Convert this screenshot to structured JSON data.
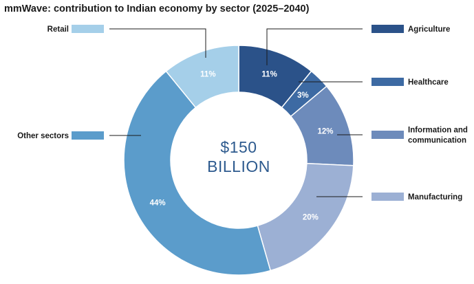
{
  "chart_data": {
    "type": "pie",
    "title": "mmWave: contribution to Indian economy by sector (2025–2040)",
    "center_label": [
      "$150",
      "BILLION"
    ],
    "slices": [
      {
        "name": "Agriculture",
        "value": 11,
        "label": "11%",
        "color": "#2b5289"
      },
      {
        "name": "Healthcare",
        "value": 3,
        "label": "3%",
        "color": "#3d6aa3"
      },
      {
        "name": "Information and communication",
        "label_lines": [
          "Information and",
          "communication"
        ],
        "value": 12,
        "label": "12%",
        "color": "#6d8bbb"
      },
      {
        "name": "Manufacturing",
        "value": 20,
        "label": "20%",
        "color": "#9cb0d4"
      },
      {
        "name": "Other sectors",
        "value": 44,
        "label": "44%",
        "color": "#5b9ccb"
      },
      {
        "name": "Retail",
        "value": 11,
        "label": "11%",
        "color": "#a5cfe9"
      }
    ]
  }
}
